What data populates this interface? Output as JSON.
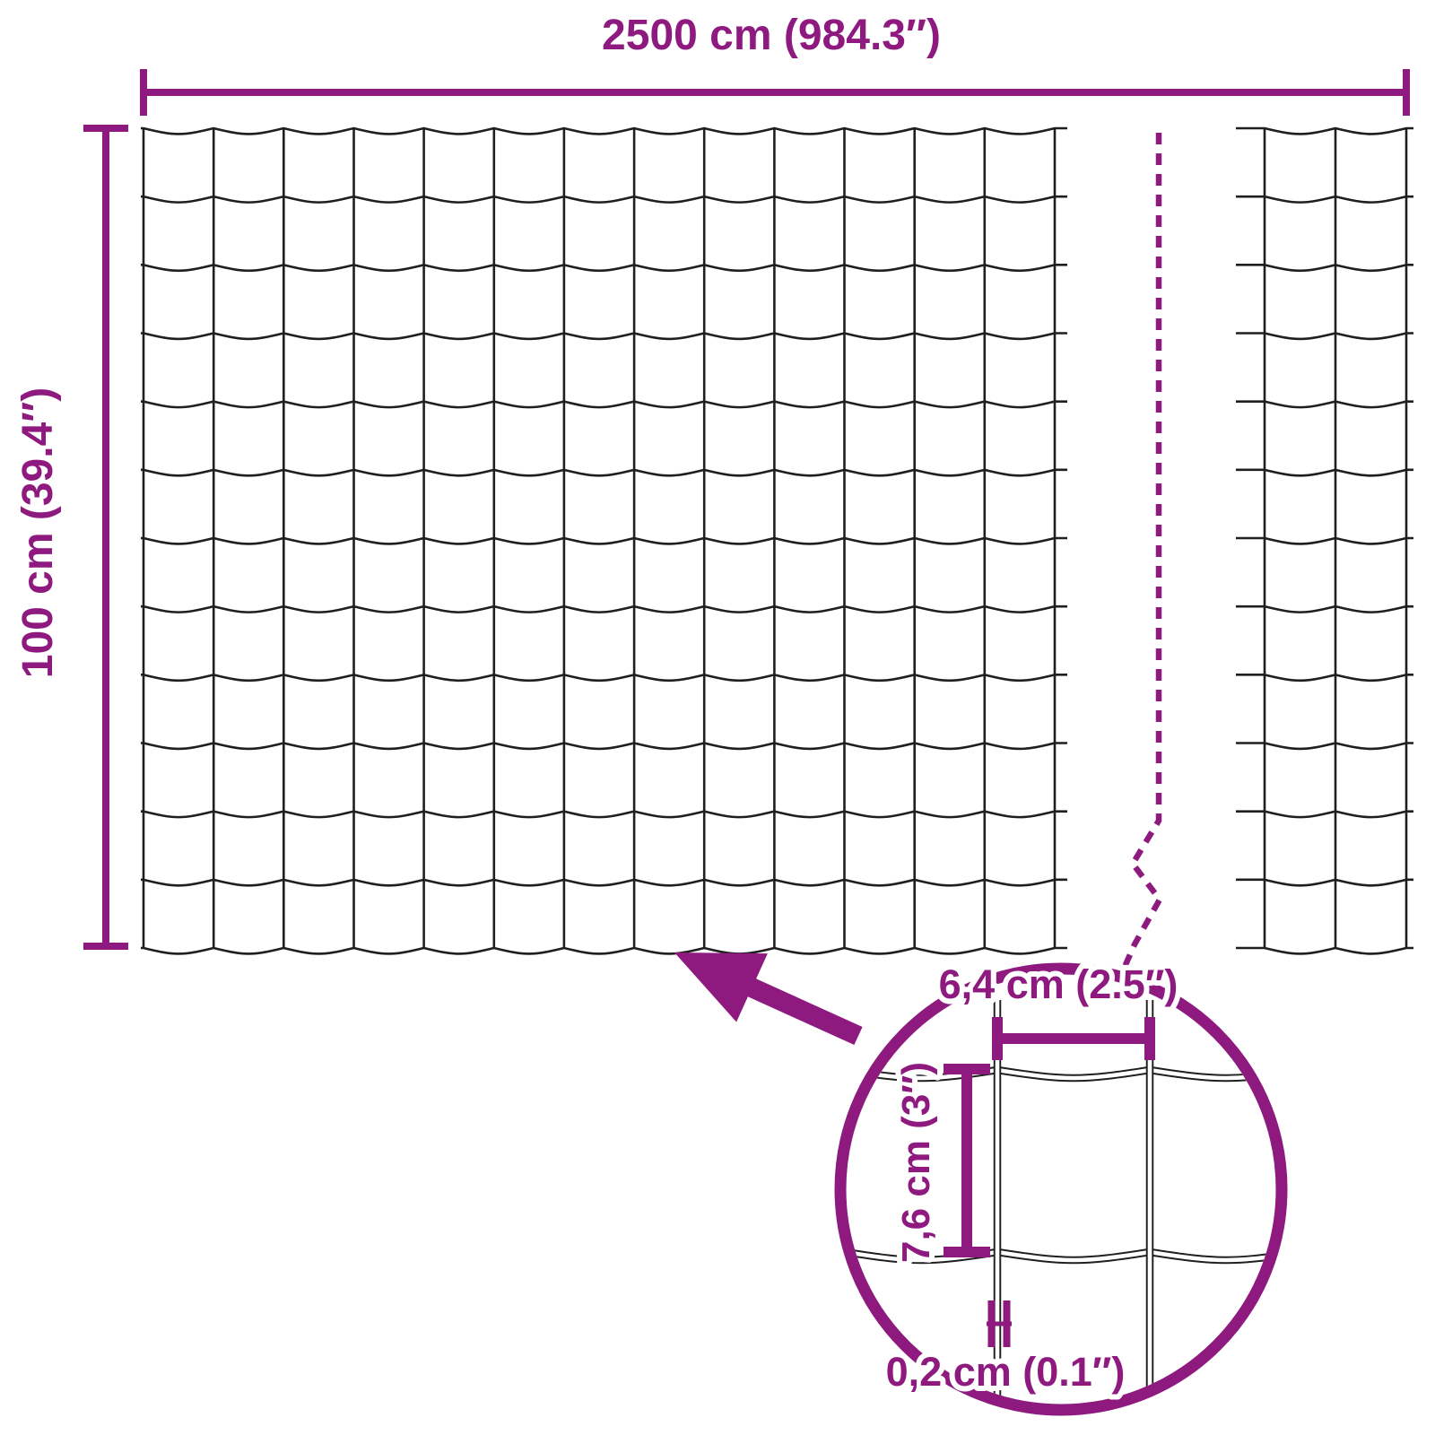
{
  "fence_diagram": {
    "overall_width_label": "2500 cm (984.3″)",
    "overall_height_label": "100 cm (39.4″)",
    "detail": {
      "mesh_width_label": "6,4 cm (2.5″)",
      "mesh_height_label": "7,6 cm (3″)",
      "wire_thickness_label": "0,2 cm (0.1″)"
    },
    "mesh": {
      "main_columns": 13,
      "main_rows": 12,
      "side_columns": 2,
      "side_rows": 12
    },
    "colors": {
      "accent": "#8E1A7F",
      "wire": "#1F1F1F",
      "background": "#FFFFFF"
    }
  }
}
